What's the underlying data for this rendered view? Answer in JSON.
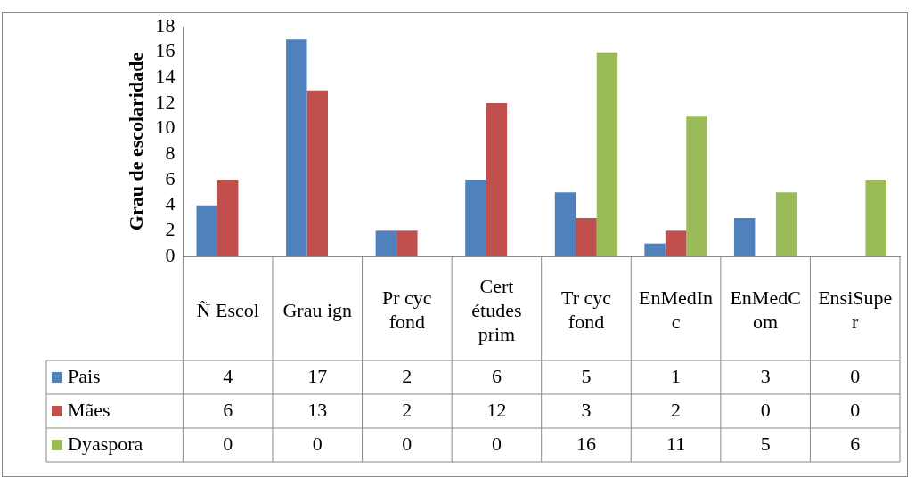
{
  "chart_data": {
    "type": "bar",
    "ylabel": "Grau de escolaridade",
    "categories": [
      "Ñ Escol",
      "Grau ign",
      "Pr cyc fond",
      "Cert études prim",
      "Tr cyc fond",
      "EnMedInc",
      "EnMedCom",
      "EnsiSuper"
    ],
    "series": [
      {
        "name": "Pais",
        "color": "#4f81bd",
        "values": [
          4,
          17,
          2,
          6,
          5,
          1,
          3,
          0
        ]
      },
      {
        "name": "Mães",
        "color": "#c0504d",
        "values": [
          6,
          13,
          2,
          12,
          3,
          2,
          0,
          0
        ]
      },
      {
        "name": "Dyaspora",
        "color": "#9bbb59",
        "values": [
          0,
          0,
          0,
          0,
          16,
          11,
          5,
          6
        ]
      }
    ],
    "ylim": [
      0,
      18
    ],
    "yticks": [
      0,
      2,
      4,
      6,
      8,
      10,
      12,
      14,
      16,
      18
    ],
    "grid": false,
    "legend": "bottom left",
    "data_labels": true
  }
}
